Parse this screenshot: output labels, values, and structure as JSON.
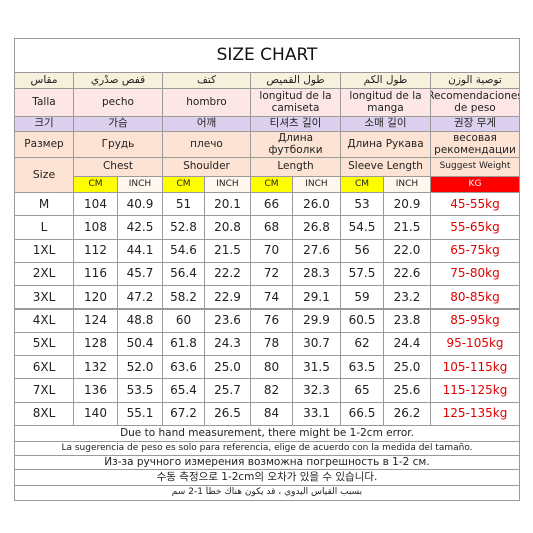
{
  "title": "SIZE CHART",
  "translations": [
    [
      "مقاس",
      "قفص صدْري",
      "كتف",
      "طول القميص",
      "طول الكم",
      "توصية الوزن"
    ],
    [
      "Talla",
      "pecho",
      "hombro",
      "longitud de la camiseta",
      "longitud de la manga",
      "Recomendaciones de peso"
    ],
    [
      "크기",
      "가슴",
      "어깨",
      "티셔츠 길이",
      "소매 길이",
      "권장 무게"
    ],
    [
      "Размер",
      "Грудь",
      "плечо",
      "Длина футболки",
      "Длина Рукава",
      "весовая рекомендации"
    ]
  ],
  "header": {
    "size": "Size",
    "groups": [
      "Chest",
      "Shoulder",
      "Length",
      "Sleeve Length",
      "Suggest Weight"
    ],
    "units": [
      "CM",
      "INCH",
      "CM",
      "INCH",
      "CM",
      "INCH",
      "CM",
      "INCH",
      "KG"
    ]
  },
  "rows": [
    [
      "M",
      "104",
      "40.9",
      "51",
      "20.1",
      "66",
      "26.0",
      "53",
      "20.9",
      "45-55kg"
    ],
    [
      "L",
      "108",
      "42.5",
      "52.8",
      "20.8",
      "68",
      "26.8",
      "54.5",
      "21.5",
      "55-65kg"
    ],
    [
      "1XL",
      "112",
      "44.1",
      "54.6",
      "21.5",
      "70",
      "27.6",
      "56",
      "22.0",
      "65-75kg"
    ],
    [
      "2XL",
      "116",
      "45.7",
      "56.4",
      "22.2",
      "72",
      "28.3",
      "57.5",
      "22.6",
      "75-80kg"
    ],
    [
      "3XL",
      "120",
      "47.2",
      "58.2",
      "22.9",
      "74",
      "29.1",
      "59",
      "23.2",
      "80-85kg"
    ],
    [
      "4XL",
      "124",
      "48.8",
      "60",
      "23.6",
      "76",
      "29.9",
      "60.5",
      "23.8",
      "85-95kg"
    ],
    [
      "5XL",
      "128",
      "50.4",
      "61.8",
      "24.3",
      "78",
      "30.7",
      "62",
      "24.4",
      "95-105kg"
    ],
    [
      "6XL",
      "132",
      "52.0",
      "63.6",
      "25.0",
      "80",
      "31.5",
      "63.5",
      "25.0",
      "105-115kg"
    ],
    [
      "7XL",
      "136",
      "53.5",
      "65.4",
      "25.7",
      "82",
      "32.3",
      "65",
      "25.6",
      "115-125kg"
    ],
    [
      "8XL",
      "140",
      "55.1",
      "67.2",
      "26.5",
      "84",
      "33.1",
      "66.5",
      "26.2",
      "125-135kg"
    ]
  ],
  "notes": [
    "Due to hand measurement, there might be 1-2cm error.",
    "La sugerencia de peso es solo para referencia, elige de acuerdo con la medida del tamaño.",
    "Из-за ручного измерения возможна погрешность в 1-2 см.",
    "수동 측정으로 1-2cm의 오차가 있을 수 있습니다.",
    "بسبب القياس اليدوي ، قد يكون هناك خطأ 1-2 سم"
  ]
}
